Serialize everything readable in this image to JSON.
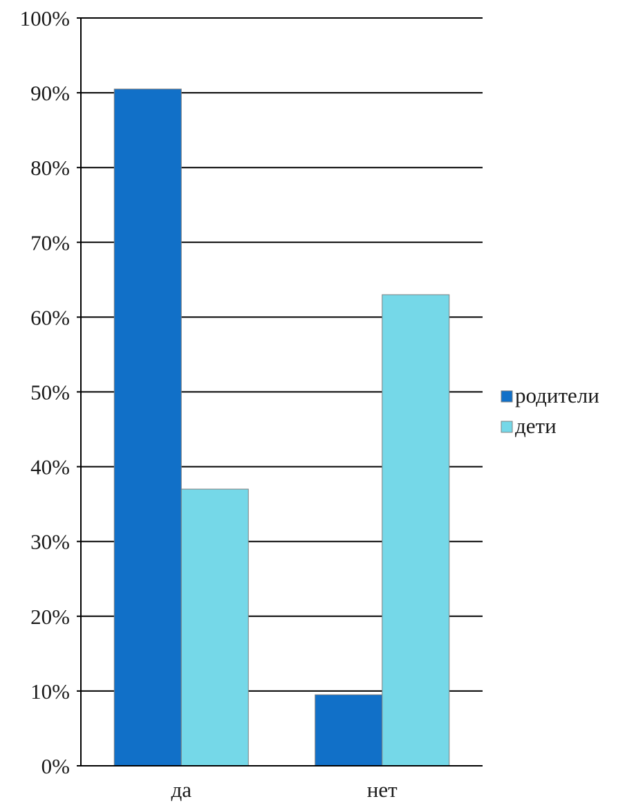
{
  "chart_data": {
    "type": "bar",
    "categories": [
      "да",
      "нет"
    ],
    "series": [
      {
        "name": "родители",
        "values": [
          90.5,
          9.5
        ],
        "color": "#1170C8"
      },
      {
        "name": "дети",
        "values": [
          37,
          63
        ],
        "color": "#75D8E8"
      }
    ],
    "ylim": [
      0,
      100
    ],
    "yticks": [
      {
        "value": 0,
        "label": "0%"
      },
      {
        "value": 10,
        "label": "10%"
      },
      {
        "value": 20,
        "label": "20%"
      },
      {
        "value": 30,
        "label": "30%"
      },
      {
        "value": 40,
        "label": "40%"
      },
      {
        "value": 50,
        "label": "50%"
      },
      {
        "value": 60,
        "label": "60%"
      },
      {
        "value": 70,
        "label": "70%"
      },
      {
        "value": 80,
        "label": "80%"
      },
      {
        "value": 90,
        "label": "90%"
      },
      {
        "value": 100,
        "label": "100%"
      }
    ],
    "grid": true,
    "legend": "right"
  }
}
